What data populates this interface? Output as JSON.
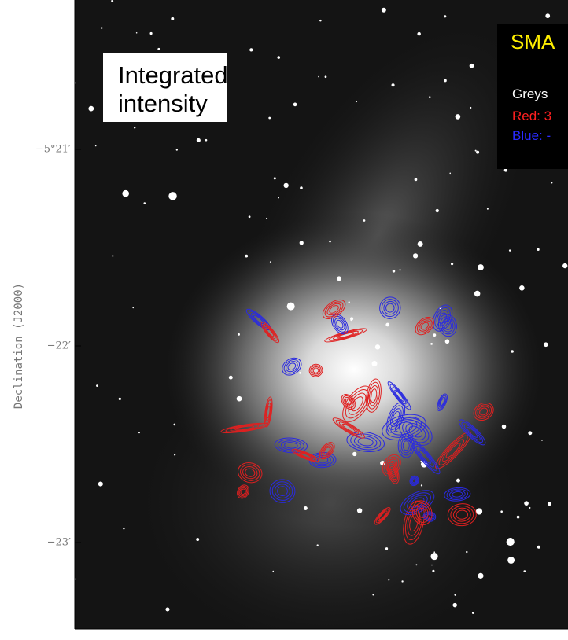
{
  "image": {
    "label_box": {
      "text": "Integrated intensity"
    },
    "legend": {
      "title": "SMA",
      "lines": [
        "Greys",
        "Red: 3",
        "Blue: -"
      ]
    }
  },
  "axes": {
    "y_label": "Declination (J2000)",
    "y_ticks": [
      "−5°21′",
      "−22′",
      "−23′"
    ]
  }
}
